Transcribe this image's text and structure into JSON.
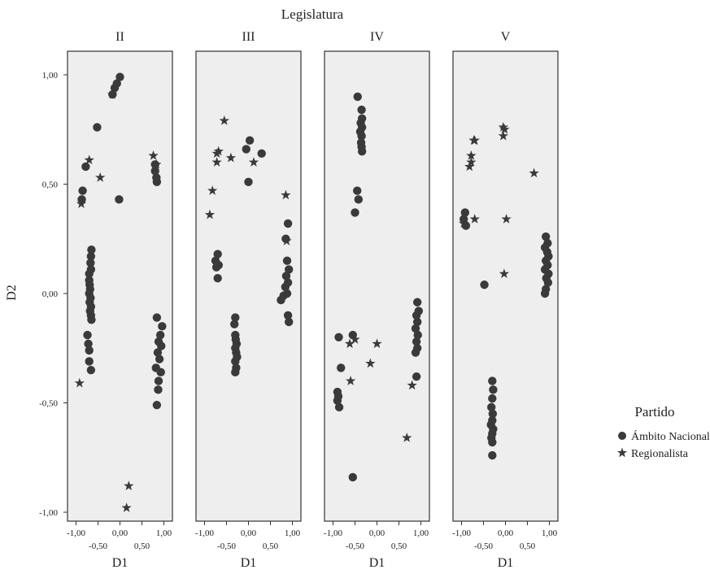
{
  "chart_data": {
    "type": "scatter",
    "super_title": "Legislatura",
    "xlabel": "D1",
    "ylabel": "D2",
    "xlim": [
      -1.1,
      1.1
    ],
    "ylim": [
      -1.0,
      1.1
    ],
    "x_ticks": [
      "-1,00",
      "-0,50",
      "0,00",
      "0,50",
      "1,00"
    ],
    "y_ticks": [
      "1,00",
      "0,50",
      "0,00",
      "-0,50",
      "-1,00"
    ],
    "legend_title": "Partido",
    "legend": [
      {
        "name": "Ámbito Nacional",
        "marker": "circle"
      },
      {
        "name": "Regionalista",
        "marker": "star"
      }
    ],
    "background": "#eeeeee",
    "marker_color": "#3a3a3a",
    "panels": [
      {
        "title": "II",
        "nacional": [
          [
            0.0,
            0.99
          ],
          [
            -0.07,
            0.96
          ],
          [
            -0.12,
            0.94
          ],
          [
            -0.17,
            0.91
          ],
          [
            -0.52,
            0.76
          ],
          [
            -0.78,
            0.58
          ],
          [
            -0.85,
            0.47
          ],
          [
            -0.87,
            0.43
          ],
          [
            -0.65,
            0.2
          ],
          [
            -0.66,
            0.17
          ],
          [
            -0.67,
            0.14
          ],
          [
            -0.66,
            0.11
          ],
          [
            -0.7,
            0.09
          ],
          [
            -0.7,
            0.06
          ],
          [
            -0.69,
            0.04
          ],
          [
            -0.68,
            0.02
          ],
          [
            -0.7,
            0.0
          ],
          [
            -0.67,
            -0.02
          ],
          [
            -0.69,
            -0.04
          ],
          [
            -0.66,
            -0.06
          ],
          [
            -0.68,
            -0.08
          ],
          [
            -0.66,
            -0.1
          ],
          [
            -0.65,
            -0.12
          ],
          [
            -0.74,
            -0.19
          ],
          [
            -0.72,
            -0.23
          ],
          [
            -0.7,
            -0.26
          ],
          [
            -0.7,
            -0.31
          ],
          [
            -0.66,
            -0.35
          ],
          [
            -0.02,
            0.43
          ],
          [
            0.8,
            0.59
          ],
          [
            0.8,
            0.56
          ],
          [
            0.83,
            0.53
          ],
          [
            0.84,
            0.51
          ],
          [
            0.84,
            -0.11
          ],
          [
            0.96,
            -0.15
          ],
          [
            0.92,
            -0.19
          ],
          [
            0.88,
            -0.22
          ],
          [
            0.94,
            -0.24
          ],
          [
            0.86,
            -0.27
          ],
          [
            0.9,
            -0.3
          ],
          [
            0.82,
            -0.34
          ],
          [
            0.93,
            -0.36
          ],
          [
            0.88,
            -0.4
          ],
          [
            0.87,
            -0.44
          ],
          [
            0.84,
            -0.51
          ]
        ],
        "regionalista": [
          [
            -0.17,
            0.91
          ],
          [
            -0.7,
            0.61
          ],
          [
            -0.88,
            0.41
          ],
          [
            -0.92,
            -0.41
          ],
          [
            -0.45,
            0.53
          ],
          [
            0.76,
            0.63
          ],
          [
            0.83,
            0.59
          ],
          [
            0.2,
            -0.88
          ],
          [
            0.15,
            -0.98
          ]
        ]
      },
      {
        "title": "III",
        "nacional": [
          [
            -0.05,
            0.66
          ],
          [
            0.03,
            0.7
          ],
          [
            0.3,
            0.64
          ],
          [
            0.0,
            0.51
          ],
          [
            -0.7,
            0.18
          ],
          [
            -0.75,
            0.15
          ],
          [
            -0.68,
            0.13
          ],
          [
            -0.73,
            0.12
          ],
          [
            -0.7,
            0.07
          ],
          [
            -0.3,
            -0.11
          ],
          [
            -0.32,
            -0.14
          ],
          [
            -0.3,
            -0.19
          ],
          [
            -0.29,
            -0.21
          ],
          [
            -0.27,
            -0.23
          ],
          [
            -0.3,
            -0.25
          ],
          [
            -0.28,
            -0.27
          ],
          [
            -0.26,
            -0.29
          ],
          [
            -0.3,
            -0.31
          ],
          [
            -0.28,
            -0.34
          ],
          [
            -0.3,
            -0.36
          ],
          [
            0.9,
            0.32
          ],
          [
            0.85,
            0.25
          ],
          [
            0.88,
            0.15
          ],
          [
            0.92,
            0.11
          ],
          [
            0.86,
            0.08
          ],
          [
            0.9,
            0.05
          ],
          [
            0.84,
            0.03
          ],
          [
            0.88,
            0.0
          ],
          [
            0.8,
            -0.01
          ],
          [
            0.74,
            -0.03
          ],
          [
            0.9,
            -0.1
          ],
          [
            0.92,
            -0.13
          ]
        ],
        "regionalista": [
          [
            -0.72,
            0.64
          ],
          [
            -0.68,
            0.65
          ],
          [
            -0.72,
            0.6
          ],
          [
            -0.55,
            0.79
          ],
          [
            -0.4,
            0.62
          ],
          [
            -0.82,
            0.47
          ],
          [
            -0.88,
            0.36
          ],
          [
            0.12,
            0.6
          ],
          [
            0.85,
            0.45
          ],
          [
            0.87,
            0.24
          ]
        ]
      },
      {
        "title": "IV",
        "nacional": [
          [
            -0.44,
            0.9
          ],
          [
            -0.35,
            0.84
          ],
          [
            -0.34,
            0.8
          ],
          [
            -0.37,
            0.78
          ],
          [
            -0.34,
            0.76
          ],
          [
            -0.38,
            0.74
          ],
          [
            -0.35,
            0.72
          ],
          [
            -0.36,
            0.69
          ],
          [
            -0.35,
            0.67
          ],
          [
            -0.34,
            0.65
          ],
          [
            -0.45,
            0.47
          ],
          [
            -0.42,
            0.43
          ],
          [
            -0.5,
            0.37
          ],
          [
            -0.87,
            -0.2
          ],
          [
            -0.55,
            -0.19
          ],
          [
            -0.82,
            -0.34
          ],
          [
            -0.9,
            -0.45
          ],
          [
            -0.88,
            -0.47
          ],
          [
            -0.9,
            -0.49
          ],
          [
            -0.86,
            -0.52
          ],
          [
            -0.55,
            -0.84
          ],
          [
            0.92,
            -0.04
          ],
          [
            0.95,
            -0.08
          ],
          [
            0.9,
            -0.1
          ],
          [
            0.92,
            -0.13
          ],
          [
            0.88,
            -0.16
          ],
          [
            0.93,
            -0.19
          ],
          [
            0.9,
            -0.22
          ],
          [
            0.92,
            -0.25
          ],
          [
            0.88,
            -0.27
          ],
          [
            0.9,
            -0.38
          ]
        ],
        "regionalista": [
          [
            -0.62,
            -0.23
          ],
          [
            -0.5,
            -0.21
          ],
          [
            -0.6,
            -0.4
          ],
          [
            -0.15,
            -0.32
          ],
          [
            0.0,
            -0.23
          ],
          [
            0.8,
            -0.42
          ],
          [
            0.68,
            -0.66
          ]
        ]
      },
      {
        "title": "V",
        "nacional": [
          [
            -0.92,
            0.37
          ],
          [
            -0.95,
            0.34
          ],
          [
            -0.9,
            0.31
          ],
          [
            -0.48,
            0.04
          ],
          [
            0.92,
            0.26
          ],
          [
            0.96,
            0.23
          ],
          [
            0.9,
            0.21
          ],
          [
            0.95,
            0.19
          ],
          [
            0.98,
            0.17
          ],
          [
            0.92,
            0.15
          ],
          [
            0.96,
            0.13
          ],
          [
            0.9,
            0.11
          ],
          [
            0.98,
            0.09
          ],
          [
            0.93,
            0.07
          ],
          [
            0.97,
            0.05
          ],
          [
            0.92,
            0.02
          ],
          [
            0.9,
            0.0
          ],
          [
            -0.3,
            -0.4
          ],
          [
            -0.28,
            -0.44
          ],
          [
            -0.3,
            -0.48
          ],
          [
            -0.32,
            -0.52
          ],
          [
            -0.29,
            -0.55
          ],
          [
            -0.3,
            -0.58
          ],
          [
            -0.33,
            -0.6
          ],
          [
            -0.28,
            -0.62
          ],
          [
            -0.3,
            -0.64
          ],
          [
            -0.32,
            -0.66
          ],
          [
            -0.3,
            -0.68
          ],
          [
            -0.3,
            -0.74
          ]
        ],
        "regionalista": [
          [
            -0.7,
            0.7
          ],
          [
            -0.72,
            0.7
          ],
          [
            -0.78,
            0.63
          ],
          [
            -0.78,
            0.6
          ],
          [
            -0.82,
            0.58
          ],
          [
            -0.7,
            0.34
          ],
          [
            -0.95,
            0.32
          ],
          [
            -0.05,
            0.76
          ],
          [
            -0.02,
            0.75
          ],
          [
            -0.05,
            0.72
          ],
          [
            0.02,
            0.34
          ],
          [
            -0.03,
            0.09
          ],
          [
            0.65,
            0.55
          ]
        ]
      }
    ]
  }
}
